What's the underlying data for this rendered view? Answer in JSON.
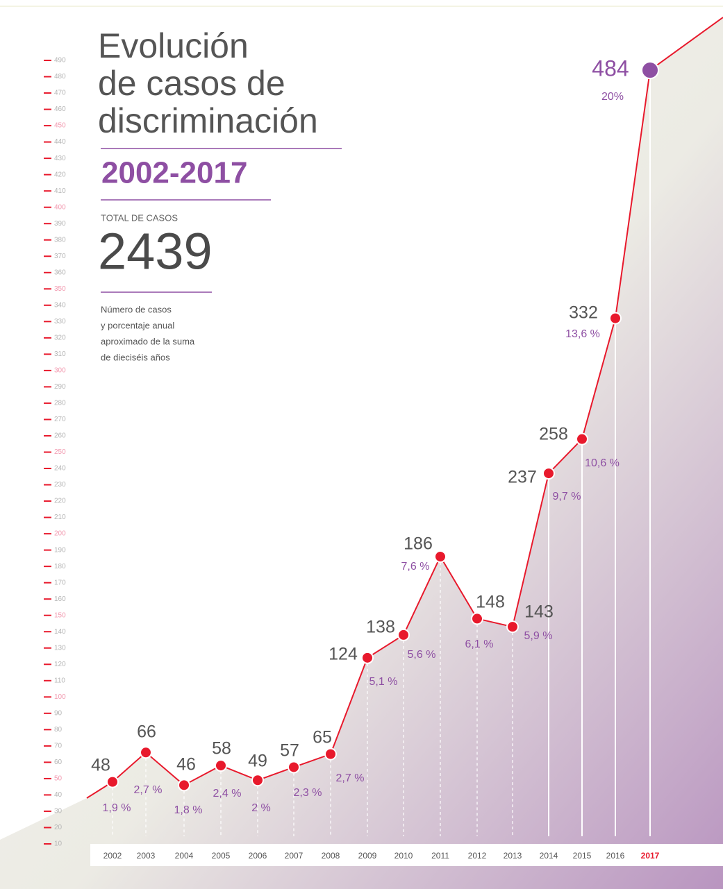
{
  "chart_data": {
    "type": "line",
    "title_lines": [
      "Evolución",
      "de casos de",
      "discriminación"
    ],
    "subtitle": "2002-2017",
    "total_label": "TOTAL DE CASOS",
    "total": 2439,
    "note_lines": [
      "Número de casos",
      "y porcentaje anual",
      "aproximado de la suma",
      "de dieciséis años"
    ],
    "categories": [
      "2002",
      "2003",
      "2004",
      "2005",
      "2006",
      "2007",
      "2008",
      "2009",
      "2010",
      "2011",
      "2012",
      "2013",
      "2014",
      "2015",
      "2016",
      "2017"
    ],
    "values": [
      48,
      66,
      46,
      58,
      49,
      57,
      65,
      124,
      138,
      186,
      148,
      143,
      237,
      258,
      332,
      484
    ],
    "percent_labels": [
      "1,9 %",
      "2,7 %",
      "1,8 %",
      "2,4 %",
      "2 %",
      "2,3 %",
      "2,7 %",
      "5,1 %",
      "5,6 %",
      "7,6 %",
      "6,1 %",
      "5,9 %",
      "9,7 %",
      "10,6 %",
      "13,6 %",
      "20%"
    ],
    "color": "#e8192c",
    "highlight_color": "#8e4fa3",
    "ylim": [
      10,
      490
    ],
    "yticks": [
      10,
      20,
      30,
      40,
      50,
      60,
      70,
      80,
      90,
      100,
      110,
      120,
      130,
      140,
      150,
      160,
      170,
      180,
      190,
      200,
      210,
      220,
      230,
      240,
      250,
      260,
      270,
      280,
      290,
      300,
      310,
      320,
      330,
      340,
      350,
      360,
      370,
      380,
      390,
      400,
      410,
      420,
      430,
      440,
      450,
      460,
      470,
      480,
      490
    ]
  }
}
